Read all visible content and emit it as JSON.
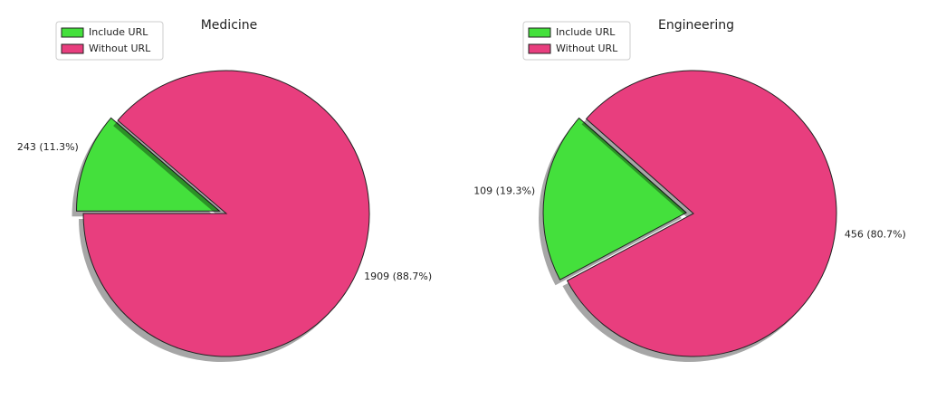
{
  "chart_data": [
    {
      "type": "pie",
      "title": "Medicine",
      "categories": [
        "Include URL",
        "Without URL"
      ],
      "values": [
        243,
        1909
      ],
      "value_labels": [
        "243 (11.3%)",
        "1909 (88.7%)"
      ],
      "colors": [
        "#44e03c",
        "#e83e7e"
      ],
      "legend": "upper left"
    },
    {
      "type": "pie",
      "title": "Engineering",
      "categories": [
        "Include URL",
        "Without URL"
      ],
      "values": [
        109,
        456
      ],
      "value_labels": [
        "109 (19.3%)",
        "456 (80.7%)"
      ],
      "colors": [
        "#44e03c",
        "#e83e7e"
      ],
      "legend": "upper left"
    }
  ]
}
